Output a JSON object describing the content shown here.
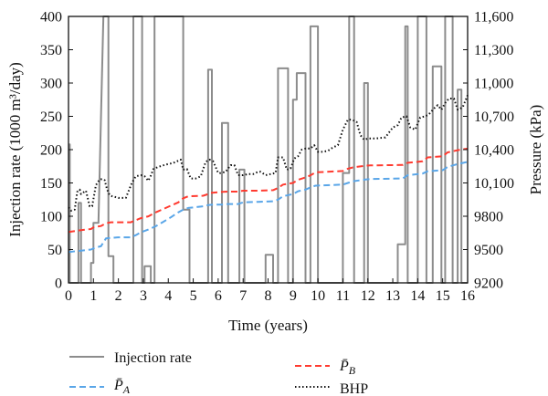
{
  "chart_data": {
    "type": "line",
    "xlabel": "Time (years)",
    "ylabel_left": "Injection rate (1000 m³/day)",
    "ylabel_right": "Pressure (kPa)",
    "xlim": [
      0,
      16
    ],
    "ylim_left": [
      0,
      400
    ],
    "ylim_right": [
      9200,
      11600
    ],
    "x_ticks": [
      "0",
      "1",
      "2",
      "3",
      "4",
      "5",
      "6",
      "7",
      "8",
      "9",
      "10",
      "11",
      "12",
      "13",
      "14",
      "15",
      "16"
    ],
    "y_left_ticks": [
      "0",
      "50",
      "100",
      "150",
      "200",
      "250",
      "300",
      "350",
      "400"
    ],
    "y_right_ticks": [
      "9200",
      "9500",
      "9800",
      "10,100",
      "10,400",
      "10,700",
      "11,000",
      "11,300",
      "11,600"
    ],
    "grid": false,
    "legend_position": "bottom",
    "series": [
      {
        "name": "Injection rate",
        "axis": "left",
        "style": "solid",
        "color": "#8c8c8c",
        "x": [
          0,
          0.05,
          0.05,
          0.4,
          0.4,
          0.5,
          0.5,
          0.9,
          0.9,
          1.0,
          1.0,
          1.2,
          1.2,
          1.4,
          1.45,
          1.6,
          1.6,
          1.8,
          1.8,
          2.0,
          2.0,
          2.6,
          2.6,
          2.7,
          2.75,
          2.95,
          2.95,
          3.05,
          3.05,
          3.3,
          3.3,
          3.45,
          3.45,
          4.6,
          4.6,
          4.85,
          4.85,
          5.05,
          5.05,
          5.6,
          5.6,
          5.75,
          5.75,
          6.15,
          6.15,
          6.4,
          6.4,
          6.85,
          6.85,
          7.05,
          7.05,
          7.6,
          7.6,
          7.9,
          7.9,
          8.2,
          8.2,
          8.4,
          8.4,
          8.8,
          8.8,
          9.0,
          9.0,
          9.15,
          9.15,
          9.5,
          9.5,
          9.7,
          9.7,
          10.0,
          10.0,
          10.2,
          10.2,
          11.0,
          11.0,
          11.25,
          11.25,
          11.45,
          11.45,
          11.85,
          11.85,
          12.0,
          12.0,
          12.25,
          12.25,
          13.2,
          13.2,
          13.5,
          13.5,
          13.6,
          13.6,
          14.0,
          14.0,
          14.35,
          14.35,
          14.6,
          14.6,
          14.95,
          14.95,
          15.1,
          15.1,
          15.4,
          15.4,
          15.6,
          15.6,
          15.75,
          15.75,
          16.0
        ],
        "values": [
          208,
          208,
          0,
          0,
          120,
          120,
          0,
          0,
          30,
          30,
          90,
          90,
          90,
          400,
          400,
          400,
          40,
          40,
          0,
          0,
          0,
          0,
          400,
          400,
          400,
          400,
          0,
          0,
          25,
          25,
          0,
          0,
          400,
          400,
          110,
          110,
          0,
          0,
          0,
          0,
          320,
          320,
          0,
          0,
          240,
          240,
          0,
          0,
          170,
          170,
          0,
          0,
          0,
          0,
          42,
          42,
          0,
          0,
          322,
          322,
          0,
          0,
          275,
          275,
          315,
          315,
          0,
          0,
          385,
          385,
          0,
          0,
          0,
          0,
          165,
          165,
          400,
          400,
          0,
          0,
          300,
          300,
          0,
          0,
          0,
          0,
          58,
          58,
          385,
          385,
          0,
          0,
          400,
          400,
          0,
          0,
          325,
          325,
          0,
          0,
          400,
          400,
          0,
          0,
          290,
          290,
          0,
          0
        ]
      },
      {
        "name": "P̄B",
        "axis": "right",
        "style": "dashed",
        "color": "#ff3b30",
        "x": [
          0,
          0.5,
          0.9,
          1.0,
          1.1,
          1.3,
          1.5,
          1.7,
          2.0,
          2.5,
          2.7,
          2.9,
          3.2,
          3.5,
          3.8,
          4.1,
          4.4,
          4.6,
          4.8,
          5.4,
          5.6,
          5.7,
          6.2,
          6.4,
          6.8,
          7.0,
          7.6,
          8.2,
          8.4,
          8.6,
          9.0,
          9.2,
          9.5,
          9.7,
          9.9,
          11.0,
          11.2,
          11.4,
          11.9,
          12.1,
          13.4,
          13.6,
          14.2,
          14.4,
          15.0,
          15.2,
          15.6,
          16.0
        ],
        "values": [
          9658,
          9675,
          9685,
          9700,
          9705,
          9712,
          9737,
          9746,
          9746,
          9746,
          9765,
          9783,
          9799,
          9835,
          9865,
          9895,
          9925,
          9962,
          9980,
          9985,
          10000,
          10010,
          10020,
          10022,
          10022,
          10030,
          10030,
          10035,
          10055,
          10085,
          10100,
          10128,
          10150,
          10168,
          10195,
          10208,
          10228,
          10240,
          10255,
          10258,
          10262,
          10282,
          10295,
          10330,
          10340,
          10375,
          10395,
          10410
        ]
      },
      {
        "name": "P̄A",
        "axis": "right",
        "style": "dashed",
        "color": "#5aa6e8",
        "x": [
          0,
          0.5,
          0.9,
          1.0,
          1.1,
          1.3,
          1.5,
          1.7,
          2.0,
          2.5,
          2.7,
          2.9,
          3.2,
          3.5,
          3.8,
          4.1,
          4.4,
          4.6,
          4.8,
          5.4,
          5.6,
          5.8,
          6.2,
          6.4,
          6.8,
          7.0,
          7.6,
          8.2,
          8.4,
          8.6,
          9.0,
          9.2,
          9.5,
          9.7,
          9.9,
          11.0,
          11.2,
          11.4,
          11.9,
          12.1,
          13.4,
          13.6,
          14.2,
          14.4,
          15.0,
          15.2,
          15.6,
          16.0
        ],
        "values": [
          9478,
          9490,
          9500,
          9510,
          9520,
          9530,
          9600,
          9605,
          9610,
          9610,
          9630,
          9655,
          9680,
          9710,
          9750,
          9790,
          9835,
          9860,
          9875,
          9890,
          9900,
          9905,
          9905,
          9910,
          9910,
          9925,
          9930,
          9935,
          9950,
          9980,
          10000,
          10025,
          10040,
          10060,
          10075,
          10085,
          10100,
          10115,
          10130,
          10135,
          10140,
          10170,
          10185,
          10205,
          10215,
          10245,
          10270,
          10290
        ]
      },
      {
        "name": "BHP",
        "axis": "right",
        "style": "dotted",
        "color": "#111111",
        "x": [
          0,
          0.1,
          0.25,
          0.35,
          0.45,
          0.5,
          0.7,
          0.85,
          0.95,
          1.1,
          1.25,
          1.35,
          1.45,
          1.55,
          1.65,
          1.75,
          1.85,
          2.0,
          2.3,
          2.55,
          2.7,
          2.9,
          3.05,
          3.2,
          3.3,
          3.4,
          3.6,
          3.9,
          4.2,
          4.5,
          4.6,
          4.75,
          4.9,
          5.1,
          5.3,
          5.5,
          5.65,
          5.8,
          6.0,
          6.1,
          6.3,
          6.5,
          6.65,
          6.8,
          7.0,
          7.2,
          7.4,
          7.6,
          7.7,
          7.9,
          8.1,
          8.3,
          8.4,
          8.6,
          8.75,
          8.9,
          9.05,
          9.2,
          9.35,
          9.5,
          9.7,
          9.85,
          10.0,
          10.2,
          10.4,
          10.6,
          10.8,
          11.0,
          11.2,
          11.35,
          11.55,
          11.7,
          11.85,
          12.0,
          12.3,
          12.7,
          13.0,
          13.2,
          13.35,
          13.55,
          13.7,
          13.9,
          14.1,
          14.3,
          14.45,
          14.65,
          14.8,
          14.95,
          15.1,
          15.25,
          15.45,
          15.6,
          15.8,
          16.0
        ],
        "values": [
          9880,
          9850,
          9860,
          10020,
          10040,
          10000,
          10030,
          9890,
          9890,
          10080,
          10130,
          10135,
          10125,
          10040,
          9990,
          9980,
          9975,
          9965,
          9965,
          10105,
          10160,
          10170,
          10160,
          10120,
          10165,
          10225,
          10245,
          10265,
          10280,
          10310,
          10220,
          10225,
          10140,
          10140,
          10160,
          10290,
          10310,
          10295,
          10190,
          10190,
          10200,
          10260,
          10260,
          10170,
          10170,
          10180,
          10180,
          10200,
          10200,
          10170,
          10180,
          10190,
          10330,
          10330,
          10220,
          10230,
          10320,
          10340,
          10400,
          10410,
          10410,
          10440,
          10380,
          10380,
          10390,
          10420,
          10440,
          10580,
          10670,
          10670,
          10650,
          10530,
          10490,
          10500,
          10500,
          10510,
          10600,
          10620,
          10690,
          10700,
          10600,
          10580,
          10690,
          10700,
          10720,
          10770,
          10800,
          10760,
          10820,
          10860,
          10860,
          10760,
          10780,
          10890
        ]
      }
    ]
  },
  "legend": {
    "injection_rate": "Injection rate",
    "pa_symbol": "P̄",
    "pa_sub": "A",
    "pb_symbol": "P̄",
    "pb_sub": "B",
    "bhp": "BHP"
  }
}
